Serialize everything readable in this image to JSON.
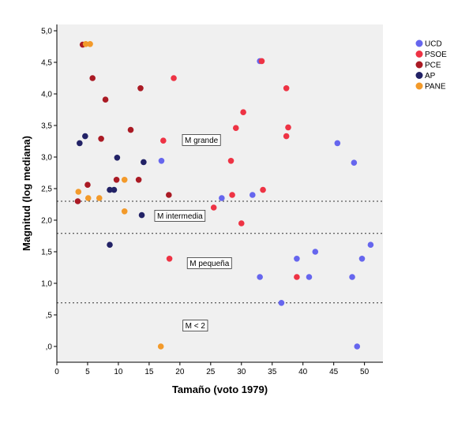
{
  "chart_data": {
    "type": "scatter",
    "xlabel": "Tamaño (voto 1979)",
    "ylabel": "Magnitud (log mediana)",
    "xlim": [
      0,
      53
    ],
    "ylim": [
      -0.25,
      5.1
    ],
    "x_ticks": [
      0,
      5,
      10,
      15,
      20,
      25,
      30,
      35,
      40,
      45,
      50
    ],
    "x_tick_labels": [
      "0",
      "5",
      "10",
      "15",
      "20",
      "25",
      "30",
      "35",
      "40",
      "45",
      "50"
    ],
    "y_ticks": [
      0,
      0.5,
      1,
      1.5,
      2,
      2.5,
      3,
      3.5,
      4,
      4.5,
      5
    ],
    "y_tick_labels": [
      ",0",
      ",5",
      "1,0",
      "1,5",
      "2,0",
      "2,5",
      "3,0",
      "3,5",
      "4,0",
      "4,5",
      "5,0"
    ],
    "grid": false,
    "legend_position": "right-top",
    "reference_lines": [
      {
        "y": 2.3,
        "style": "dotted"
      },
      {
        "y": 1.79,
        "style": "dotted"
      },
      {
        "y": 0.69,
        "style": "dotted"
      }
    ],
    "annotations": [
      {
        "text": "M grande",
        "x": 23.5,
        "y": 3.27
      },
      {
        "text": "M intermedia",
        "x": 20.0,
        "y": 2.07
      },
      {
        "text": "M pequeña",
        "x": 24.8,
        "y": 1.32
      },
      {
        "text": "M < 2",
        "x": 22.5,
        "y": 0.33
      }
    ],
    "series": [
      {
        "name": "UCD",
        "color": "#6666ee",
        "points": [
          [
            33.0,
            4.52
          ],
          [
            17.0,
            2.94
          ],
          [
            26.8,
            2.35
          ],
          [
            31.8,
            2.4
          ],
          [
            45.6,
            3.22
          ],
          [
            48.3,
            2.91
          ],
          [
            51.0,
            1.61
          ],
          [
            42.0,
            1.5
          ],
          [
            39.0,
            1.39
          ],
          [
            49.6,
            1.39
          ],
          [
            33.0,
            1.1
          ],
          [
            41.0,
            1.1
          ],
          [
            48.0,
            1.1
          ],
          [
            36.5,
            0.69
          ],
          [
            48.8,
            0.0
          ]
        ]
      },
      {
        "name": "PSOE",
        "color": "#ee3344",
        "points": [
          [
            33.3,
            4.52
          ],
          [
            19.0,
            4.25
          ],
          [
            37.3,
            4.09
          ],
          [
            30.3,
            3.71
          ],
          [
            37.6,
            3.47
          ],
          [
            29.1,
            3.46
          ],
          [
            37.3,
            3.33
          ],
          [
            17.3,
            3.26
          ],
          [
            28.3,
            2.94
          ],
          [
            33.5,
            2.48
          ],
          [
            28.5,
            2.4
          ],
          [
            25.5,
            2.2
          ],
          [
            30.0,
            1.95
          ],
          [
            18.3,
            1.39
          ],
          [
            39.0,
            1.1
          ]
        ]
      },
      {
        "name": "PCE",
        "color": "#aa1a24",
        "points": [
          [
            4.2,
            4.78
          ],
          [
            5.8,
            4.25
          ],
          [
            13.6,
            4.09
          ],
          [
            7.9,
            3.91
          ],
          [
            12.0,
            3.43
          ],
          [
            7.2,
            3.29
          ],
          [
            5.0,
            2.56
          ],
          [
            9.7,
            2.64
          ],
          [
            13.3,
            2.64
          ],
          [
            18.2,
            2.4
          ],
          [
            3.4,
            2.3
          ]
        ]
      },
      {
        "name": "AP",
        "color": "#222266",
        "points": [
          [
            4.6,
            3.33
          ],
          [
            3.7,
            3.22
          ],
          [
            9.8,
            2.99
          ],
          [
            14.1,
            2.92
          ],
          [
            8.6,
            2.48
          ],
          [
            9.3,
            2.48
          ],
          [
            13.8,
            2.08
          ],
          [
            8.6,
            1.61
          ]
        ]
      },
      {
        "name": "PANE",
        "color": "#f39a2a",
        "points": [
          [
            4.7,
            4.79
          ],
          [
            5.4,
            4.79
          ],
          [
            11.0,
            2.64
          ],
          [
            3.5,
            2.45
          ],
          [
            5.1,
            2.35
          ],
          [
            6.9,
            2.35
          ],
          [
            11.0,
            2.14
          ],
          [
            16.9,
            0.0
          ]
        ]
      }
    ]
  }
}
